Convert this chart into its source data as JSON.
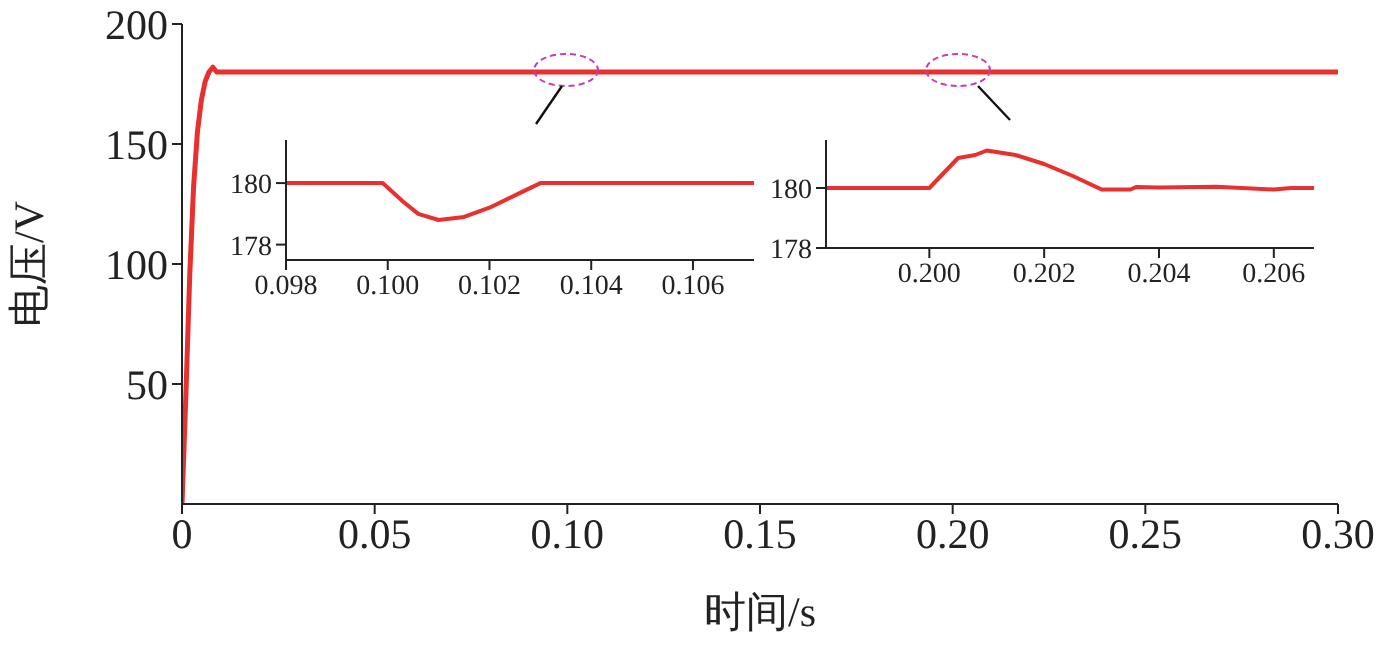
{
  "chart_data": [
    {
      "type": "line",
      "xlabel": "时间/s",
      "ylabel": "电压/V",
      "x": [
        0,
        0.001,
        0.002,
        0.003,
        0.004,
        0.005,
        0.006,
        0.007,
        0.008,
        0.009,
        0.1,
        0.2,
        0.3
      ],
      "series": [
        {
          "color": "#e8302e",
          "values": [
            0,
            45,
            95,
            132,
            155,
            168,
            176,
            180,
            182,
            180,
            180,
            180,
            180
          ]
        }
      ],
      "xlim": [
        0,
        0.3
      ],
      "ylim": [
        0,
        200
      ],
      "xticks": [
        0,
        0.05,
        {
          "value": 0.1,
          "label": "0.10"
        },
        0.15,
        {
          "value": 0.2,
          "label": "0.20"
        },
        0.25,
        {
          "value": 0.3,
          "label": "0.30"
        }
      ],
      "yticks": [
        50,
        100,
        150,
        200
      ],
      "grid": false,
      "legend": false,
      "marker": "none"
    },
    {
      "type": "line",
      "x": [
        0.098,
        0.0999,
        0.1003,
        0.1006,
        0.101,
        0.1015,
        0.102,
        0.1025,
        0.103,
        0.1072
      ],
      "series": [
        {
          "color": "#e8302e",
          "values": [
            180,
            180,
            179.4,
            179,
            178.8,
            178.9,
            179.2,
            179.6,
            180,
            180
          ]
        }
      ],
      "xlim": [
        0.098,
        0.1072
      ],
      "ylim": [
        177.5,
        181.4
      ],
      "xticks": [
        0.098,
        {
          "value": 0.1,
          "label": "0.100"
        },
        0.102,
        0.104,
        0.106
      ],
      "yticks": [
        178,
        180
      ],
      "grid": false,
      "legend": false,
      "marker": "none"
    },
    {
      "type": "line",
      "x": [
        0.1982,
        0.2,
        0.2003,
        0.2005,
        0.2008,
        0.201,
        0.2015,
        0.202,
        0.2025,
        0.203,
        0.2035,
        0.2036,
        0.204,
        0.205,
        0.206,
        0.2063,
        0.2067
      ],
      "series": [
        {
          "color": "#e8302e",
          "values": [
            180,
            180,
            180.6,
            181.0,
            181.1,
            181.25,
            181.1,
            180.8,
            180.4,
            179.95,
            179.95,
            180.03,
            180.02,
            180.04,
            179.95,
            180,
            180
          ]
        }
      ],
      "xlim": [
        0.1982,
        0.2067
      ],
      "ylim": [
        178,
        181.6
      ],
      "xticks": [
        {
          "value": 0.2,
          "label": "0.200"
        },
        0.202,
        0.204,
        0.206
      ],
      "yticks": [
        178,
        180
      ],
      "grid": false,
      "legend": false,
      "marker": "none"
    }
  ]
}
